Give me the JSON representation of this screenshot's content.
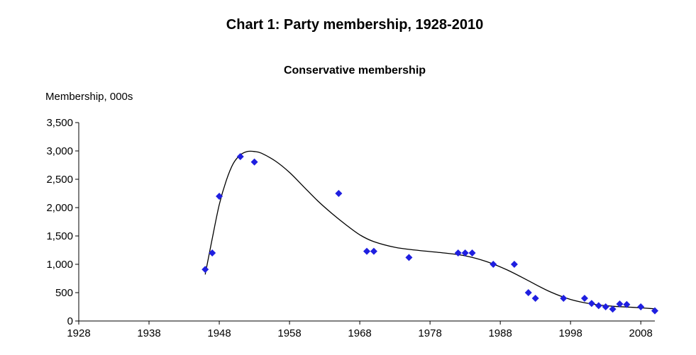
{
  "chart_data": {
    "type": "scatter",
    "title": "Chart 1:  Party membership, 1928-2010",
    "subtitle": "Conservative  membership",
    "ylabel": "Membership, 000s",
    "xlabel": "",
    "xlim": [
      1928,
      2010
    ],
    "ylim": [
      0,
      3500
    ],
    "x_ticks": [
      1928,
      1938,
      1948,
      1958,
      1968,
      1978,
      1988,
      1998,
      2008
    ],
    "y_ticks": [
      0,
      500,
      1000,
      1500,
      2000,
      2500,
      3000,
      3500
    ],
    "y_tick_labels": [
      "0",
      "500",
      "1,000",
      "1,500",
      "2,000",
      "2,500",
      "3,000",
      "3,500"
    ],
    "grid": false,
    "marker_color": "#1f1fe0",
    "trend_color": "#000000",
    "points": [
      {
        "x": 1946,
        "y": 910
      },
      {
        "x": 1947,
        "y": 1200
      },
      {
        "x": 1948,
        "y": 2200
      },
      {
        "x": 1951,
        "y": 2900
      },
      {
        "x": 1953,
        "y": 2805
      },
      {
        "x": 1965,
        "y": 2250
      },
      {
        "x": 1969,
        "y": 1230
      },
      {
        "x": 1970,
        "y": 1230
      },
      {
        "x": 1975,
        "y": 1120
      },
      {
        "x": 1982,
        "y": 1200
      },
      {
        "x": 1983,
        "y": 1200
      },
      {
        "x": 1984,
        "y": 1200
      },
      {
        "x": 1987,
        "y": 1000
      },
      {
        "x": 1990,
        "y": 1000
      },
      {
        "x": 1992,
        "y": 500
      },
      {
        "x": 1993,
        "y": 400
      },
      {
        "x": 1997,
        "y": 400
      },
      {
        "x": 2000,
        "y": 400
      },
      {
        "x": 2001,
        "y": 310
      },
      {
        "x": 2002,
        "y": 270
      },
      {
        "x": 2003,
        "y": 250
      },
      {
        "x": 2004,
        "y": 210
      },
      {
        "x": 2005,
        "y": 300
      },
      {
        "x": 2006,
        "y": 290
      },
      {
        "x": 2008,
        "y": 250
      },
      {
        "x": 2010,
        "y": 180
      }
    ],
    "trend": [
      {
        "x": 1946,
        "y": 820
      },
      {
        "x": 1947,
        "y": 1450
      },
      {
        "x": 1948,
        "y": 2050
      },
      {
        "x": 1949,
        "y": 2480
      },
      {
        "x": 1950,
        "y": 2780
      },
      {
        "x": 1951,
        "y": 2930
      },
      {
        "x": 1952,
        "y": 2990
      },
      {
        "x": 1953,
        "y": 2990
      },
      {
        "x": 1954,
        "y": 2960
      },
      {
        "x": 1956,
        "y": 2820
      },
      {
        "x": 1958,
        "y": 2620
      },
      {
        "x": 1960,
        "y": 2370
      },
      {
        "x": 1962,
        "y": 2120
      },
      {
        "x": 1964,
        "y": 1900
      },
      {
        "x": 1966,
        "y": 1700
      },
      {
        "x": 1968,
        "y": 1520
      },
      {
        "x": 1970,
        "y": 1400
      },
      {
        "x": 1973,
        "y": 1300
      },
      {
        "x": 1976,
        "y": 1250
      },
      {
        "x": 1980,
        "y": 1200
      },
      {
        "x": 1983,
        "y": 1150
      },
      {
        "x": 1986,
        "y": 1050
      },
      {
        "x": 1989,
        "y": 900
      },
      {
        "x": 1992,
        "y": 710
      },
      {
        "x": 1995,
        "y": 520
      },
      {
        "x": 1998,
        "y": 380
      },
      {
        "x": 2001,
        "y": 300
      },
      {
        "x": 2004,
        "y": 260
      },
      {
        "x": 2007,
        "y": 240
      },
      {
        "x": 2010,
        "y": 215
      }
    ]
  }
}
